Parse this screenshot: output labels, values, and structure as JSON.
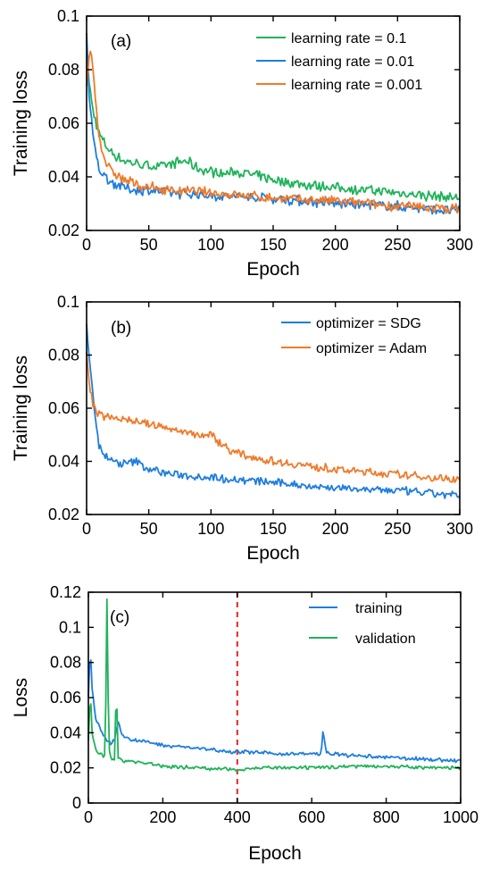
{
  "chart_data": [
    {
      "type": "line",
      "panel_label": "(a)",
      "xlabel": "Epoch",
      "ylabel": "Training loss",
      "xlim": [
        0,
        300
      ],
      "ylim": [
        0.02,
        0.1
      ],
      "xticks": [
        0,
        50,
        100,
        150,
        200,
        250,
        300
      ],
      "yticks": [
        0.02,
        0.04,
        0.06,
        0.08,
        0.1
      ],
      "xtick_labels": [
        "0",
        "50",
        "100",
        "150",
        "200",
        "250",
        "300"
      ],
      "ytick_labels": [
        "0.02",
        "0.04",
        "0.06",
        "0.08",
        "0.1"
      ],
      "legend_position": "top-right",
      "noise": 0.0022,
      "series": [
        {
          "name": "learning rate = 0.1",
          "color": "#1fb35a",
          "x": [
            0,
            2,
            5,
            10,
            15,
            20,
            30,
            40,
            50,
            60,
            70,
            80,
            90,
            100,
            110,
            120,
            140,
            160,
            200,
            250,
            300
          ],
          "y": [
            0.09,
            0.075,
            0.065,
            0.056,
            0.052,
            0.049,
            0.046,
            0.045,
            0.044,
            0.044,
            0.045,
            0.046,
            0.043,
            0.042,
            0.041,
            0.042,
            0.04,
            0.038,
            0.036,
            0.034,
            0.032
          ]
        },
        {
          "name": "learning rate = 0.01",
          "color": "#1e7de0",
          "x": [
            0,
            2,
            5,
            10,
            15,
            20,
            30,
            40,
            50,
            70,
            100,
            150,
            200,
            250,
            300
          ],
          "y": [
            0.094,
            0.07,
            0.055,
            0.043,
            0.04,
            0.038,
            0.036,
            0.035,
            0.035,
            0.034,
            0.033,
            0.032,
            0.03,
            0.029,
            0.027
          ]
        },
        {
          "name": "learning rate = 0.001",
          "color": "#f07a2a",
          "x": [
            0,
            3,
            5,
            8,
            10,
            15,
            20,
            30,
            40,
            50,
            70,
            100,
            150,
            200,
            250,
            300
          ],
          "y": [
            0.075,
            0.088,
            0.08,
            0.065,
            0.055,
            0.046,
            0.042,
            0.039,
            0.037,
            0.036,
            0.035,
            0.034,
            0.032,
            0.031,
            0.029,
            0.028
          ]
        }
      ]
    },
    {
      "type": "line",
      "panel_label": "(b)",
      "xlabel": "Epoch",
      "ylabel": "Training loss",
      "xlim": [
        0,
        300
      ],
      "ylim": [
        0.02,
        0.1
      ],
      "xticks": [
        0,
        50,
        100,
        150,
        200,
        250,
        300
      ],
      "yticks": [
        0.02,
        0.04,
        0.06,
        0.08,
        0.1
      ],
      "xtick_labels": [
        "0",
        "50",
        "100",
        "150",
        "200",
        "250",
        "300"
      ],
      "ytick_labels": [
        "0.02",
        "0.04",
        "0.06",
        "0.08",
        "0.1"
      ],
      "legend_position": "top-right",
      "noise": 0.0018,
      "series": [
        {
          "name": "optimizer = SDG",
          "color": "#1e7de0",
          "x": [
            0,
            2,
            5,
            8,
            10,
            15,
            20,
            30,
            40,
            50,
            70,
            100,
            150,
            200,
            250,
            300
          ],
          "y": [
            0.091,
            0.08,
            0.065,
            0.052,
            0.046,
            0.042,
            0.04,
            0.039,
            0.04,
            0.037,
            0.035,
            0.034,
            0.032,
            0.03,
            0.029,
            0.027
          ]
        },
        {
          "name": "optimizer = Adam",
          "color": "#f07a2a",
          "x": [
            0,
            2,
            5,
            8,
            10,
            15,
            20,
            30,
            40,
            50,
            60,
            70,
            80,
            90,
            100,
            110,
            120,
            150,
            200,
            250,
            300
          ],
          "y": [
            0.08,
            0.07,
            0.062,
            0.058,
            0.058,
            0.057,
            0.057,
            0.056,
            0.055,
            0.054,
            0.053,
            0.052,
            0.051,
            0.05,
            0.05,
            0.046,
            0.043,
            0.04,
            0.037,
            0.035,
            0.033
          ]
        }
      ]
    },
    {
      "type": "line",
      "panel_label": "(c)",
      "xlabel": "Epoch",
      "ylabel": "Loss",
      "xlim": [
        0,
        1000
      ],
      "ylim": [
        0,
        0.12
      ],
      "xticks": [
        0,
        200,
        400,
        600,
        800,
        1000
      ],
      "yticks": [
        0,
        0.02,
        0.04,
        0.06,
        0.08,
        0.1,
        0.12
      ],
      "xtick_labels": [
        "0",
        "200",
        "400",
        "600",
        "800",
        "1000"
      ],
      "ytick_labels": [
        "0",
        "0.02",
        "0.04",
        "0.06",
        "0.08",
        "0.1",
        "0.12"
      ],
      "legend_position": "top-right",
      "vline": {
        "x": 400,
        "color": "#e8231f",
        "style": "dashed"
      },
      "noise": 0.0012,
      "series": [
        {
          "name": "training",
          "color": "#1e7de0",
          "x": [
            0,
            5,
            10,
            20,
            40,
            60,
            70,
            80,
            90,
            100,
            150,
            200,
            250,
            300,
            350,
            400,
            450,
            500,
            550,
            600,
            625,
            630,
            640,
            650,
            700,
            800,
            900,
            1000
          ],
          "y": [
            0.06,
            0.09,
            0.065,
            0.048,
            0.038,
            0.034,
            0.036,
            0.047,
            0.04,
            0.037,
            0.035,
            0.033,
            0.032,
            0.031,
            0.03,
            0.029,
            0.029,
            0.028,
            0.028,
            0.028,
            0.028,
            0.04,
            0.029,
            0.028,
            0.027,
            0.026,
            0.025,
            0.024
          ]
        },
        {
          "name": "validation",
          "color": "#1fb35a",
          "x": [
            0,
            5,
            10,
            20,
            30,
            45,
            50,
            55,
            60,
            70,
            75,
            80,
            90,
            100,
            150,
            200,
            300,
            400,
            450,
            500,
            600,
            700,
            800,
            900,
            1000
          ],
          "y": [
            0.035,
            0.064,
            0.04,
            0.03,
            0.028,
            0.026,
            0.116,
            0.03,
            0.026,
            0.025,
            0.068,
            0.026,
            0.024,
            0.024,
            0.023,
            0.021,
            0.02,
            0.019,
            0.02,
            0.02,
            0.02,
            0.021,
            0.021,
            0.02,
            0.02
          ]
        }
      ]
    }
  ]
}
